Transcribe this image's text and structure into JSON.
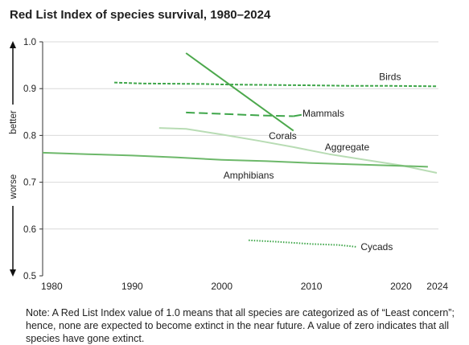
{
  "chart_data": {
    "type": "line",
    "title": "Red List Index of species survival, 1980–2024",
    "xlabel": "",
    "ylabel_top": "better",
    "ylabel_bottom": "worse",
    "xlim": [
      1980,
      2024
    ],
    "ylim": [
      0.5,
      1.0
    ],
    "x_ticks": [
      1980,
      1990,
      2000,
      2010,
      2020,
      2024
    ],
    "y_ticks": [
      0.5,
      0.6,
      0.7,
      0.8,
      0.9,
      1.0
    ],
    "y_tick_labels": [
      "0.5",
      "0.6",
      "0.7",
      "0.8",
      "0.9",
      "1.0"
    ],
    "grid": "horizontal",
    "legend": "inline labels",
    "series": [
      {
        "name": "Birds",
        "color": "#3fa64a",
        "style": "dashed",
        "x": [
          1988,
          1991,
          1998,
          2000,
          2004,
          2010,
          2014,
          2018,
          2024
        ],
        "y": [
          0.913,
          0.911,
          0.91,
          0.909,
          0.908,
          0.907,
          0.906,
          0.906,
          0.905
        ]
      },
      {
        "name": "Mammals",
        "color": "#3fa64a",
        "style": "long-dashed",
        "x": [
          1996,
          2000,
          2004,
          2008
        ],
        "y": [
          0.849,
          0.846,
          0.843,
          0.841
        ]
      },
      {
        "name": "Corals",
        "color": "#4ca84c",
        "style": "solid",
        "x": [
          1996,
          2008
        ],
        "y": [
          0.976,
          0.81
        ]
      },
      {
        "name": "Aggregate",
        "color": "#b8dcb4",
        "style": "solid",
        "x": [
          1993,
          1996,
          2000,
          2004,
          2008,
          2012,
          2016,
          2020,
          2024
        ],
        "y": [
          0.816,
          0.814,
          0.802,
          0.789,
          0.775,
          0.76,
          0.748,
          0.736,
          0.72
        ]
      },
      {
        "name": "Amphibians",
        "color": "#6db86a",
        "style": "solid",
        "x": [
          1980,
          1985,
          1990,
          1995,
          2000,
          2005,
          2010,
          2015,
          2020,
          2023
        ],
        "y": [
          0.763,
          0.76,
          0.757,
          0.753,
          0.748,
          0.745,
          0.741,
          0.738,
          0.735,
          0.733
        ]
      },
      {
        "name": "Cycads",
        "color": "#3fa64a",
        "style": "dotted",
        "x": [
          2003,
          2006,
          2010,
          2013,
          2015
        ],
        "y": [
          0.576,
          0.573,
          0.568,
          0.566,
          0.562
        ]
      }
    ]
  },
  "note": "Note: A Red List Index value of 1.0 means that all species are categorized as of “Least concern”; hence, none are expected to become extinct in the near future. A value of zero indicates that all species have gone extinct."
}
